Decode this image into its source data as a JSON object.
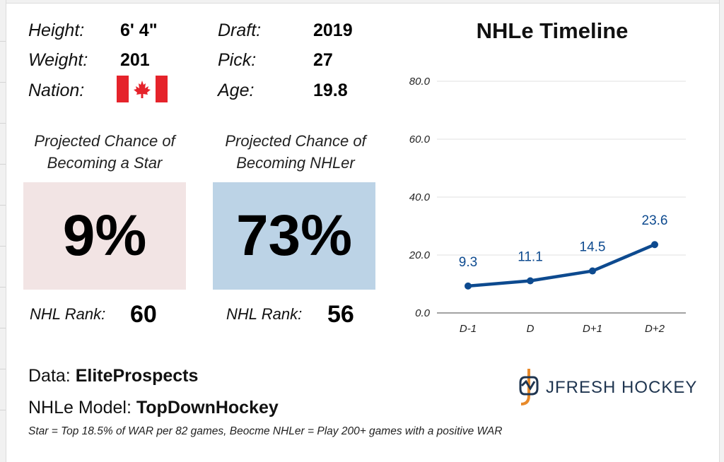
{
  "player": {
    "height_label": "Height:",
    "height": "6' 4\"",
    "weight_label": "Weight:",
    "weight": "201",
    "nation_label": "Nation:",
    "nation_icon": "canada-flag-icon",
    "draft_label": "Draft:",
    "draft": "2019",
    "pick_label": "Pick:",
    "pick": "27",
    "age_label": "Age:",
    "age": "19.8"
  },
  "projections": {
    "star": {
      "title_line1": "Projected Chance of",
      "title_line2": "Becoming a Star",
      "value": "9%",
      "rank_label": "NHL Rank:",
      "rank": "60",
      "color": "#f2e4e4"
    },
    "nhler": {
      "title_line1": "Projected Chance of",
      "title_line2": "Becoming NHLer",
      "value": "73%",
      "rank_label": "NHL Rank:",
      "rank": "56",
      "color": "#bcd3e6"
    }
  },
  "chart_data": {
    "type": "line",
    "title": "NHLe Timeline",
    "categories": [
      "D-1",
      "D",
      "D+1",
      "D+2"
    ],
    "series": [
      {
        "values": [
          9.3,
          11.1,
          14.5,
          23.6
        ],
        "color": "#0d4a8f"
      }
    ],
    "data_labels": [
      "9.3",
      "11.1",
      "14.5",
      "23.6"
    ],
    "ylim": [
      0,
      80
    ],
    "yticks": [
      "0.0",
      "20.0",
      "40.0",
      "60.0",
      "80.0"
    ],
    "grid": true,
    "xlabel": "",
    "ylabel": ""
  },
  "footer": {
    "data_prefix": "Data: ",
    "data_source": "EliteProspects",
    "model_prefix": "NHLe Model: ",
    "model_source": "TopDownHockey",
    "footnote": "Star = Top 18.5% of WAR per 82 games, Beocme NHLer = Play 200+ games with a positive WAR",
    "logo_text": "JFRESH HOCKEY",
    "logo_icon": "jfresh-hockey-logo-icon"
  }
}
